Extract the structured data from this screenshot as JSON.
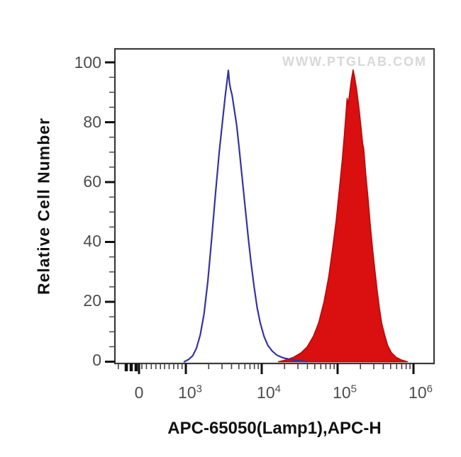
{
  "chart_data": {
    "type": "area",
    "description": "Flow cytometry overlay histogram: open blue control peak and red filled stained peak",
    "watermark": "WWW.PTGLAB.COM",
    "xlabel": "APC-65050(Lamp1),APC-H",
    "ylabel": "Relative Cell Number",
    "legend_position": "none",
    "grid": false,
    "x_axis": {
      "scale": "biexponential (linear near 0, log10 decades above)",
      "range_log10": [
        2.065,
        6.271
      ],
      "zero_tick": {
        "label": "0",
        "log10_pos": 2.383
      },
      "powers": [
        {
          "base": "10",
          "exp": "3",
          "log10_pos": 3
        },
        {
          "base": "10",
          "exp": "4",
          "log10_pos": 4
        },
        {
          "base": "10",
          "exp": "5",
          "log10_pos": 5
        },
        {
          "base": "10",
          "exp": "6",
          "log10_pos": 6
        }
      ],
      "zero_cluster_log10": [
        2.215,
        2.28,
        2.345
      ],
      "pre_decade_minors_log10": [
        2.42,
        2.48,
        2.545,
        2.605,
        2.665,
        2.72,
        2.78,
        2.84,
        2.895,
        2.95
      ],
      "edge_minor_log10": 2.11
    },
    "y_axis": {
      "tick_labels": [
        "0",
        "20",
        "40",
        "60",
        "80",
        "100"
      ],
      "tick_values": [
        0,
        20,
        40,
        60,
        80,
        100
      ],
      "minor_step": 5,
      "display_max": 104.5
    },
    "series": [
      {
        "name": "control (open blue histogram)",
        "style": "open",
        "stroke": "#3434a2",
        "stroke_width": 2.2,
        "fill": "none",
        "peak_x_approx": "3.6e3",
        "peak_height": 97,
        "points": [
          [
            2.98,
            0
          ],
          [
            3.04,
            0.8
          ],
          [
            3.09,
            2
          ],
          [
            3.14,
            4.5
          ],
          [
            3.19,
            9
          ],
          [
            3.24,
            16
          ],
          [
            3.29,
            27
          ],
          [
            3.34,
            41
          ],
          [
            3.39,
            56
          ],
          [
            3.44,
            70
          ],
          [
            3.49,
            82
          ],
          [
            3.52,
            89
          ],
          [
            3.545,
            94
          ],
          [
            3.56,
            97.3
          ],
          [
            3.575,
            93
          ],
          [
            3.59,
            91
          ],
          [
            3.61,
            89
          ],
          [
            3.64,
            84
          ],
          [
            3.67,
            79
          ],
          [
            3.7,
            72
          ],
          [
            3.74,
            62
          ],
          [
            3.78,
            52
          ],
          [
            3.82,
            42
          ],
          [
            3.86,
            33
          ],
          [
            3.9,
            25
          ],
          [
            3.94,
            18
          ],
          [
            3.98,
            13
          ],
          [
            4.03,
            8.5
          ],
          [
            4.08,
            5.5
          ],
          [
            4.14,
            3.5
          ],
          [
            4.2,
            2.2
          ],
          [
            4.28,
            1.3
          ],
          [
            4.38,
            0.7
          ],
          [
            4.5,
            0.3
          ],
          [
            4.6,
            0.05
          ]
        ]
      },
      {
        "name": "APC-65050 (Lamp1) stained (red filled histogram)",
        "style": "filled",
        "stroke": "#b50909",
        "stroke_width": 1.5,
        "fill": "#da0f0f",
        "peak_x_approx": "1.6e5",
        "peak_height": 97.5,
        "points": [
          [
            4.22,
            0
          ],
          [
            4.32,
            0.6
          ],
          [
            4.42,
            1.5
          ],
          [
            4.52,
            3
          ],
          [
            4.6,
            5
          ],
          [
            4.68,
            8.5
          ],
          [
            4.75,
            13
          ],
          [
            4.82,
            20
          ],
          [
            4.88,
            28
          ],
          [
            4.93,
            37
          ],
          [
            4.98,
            47
          ],
          [
            5.02,
            57
          ],
          [
            5.06,
            67
          ],
          [
            5.09,
            76
          ],
          [
            5.11,
            83
          ],
          [
            5.125,
            88
          ],
          [
            5.14,
            86
          ],
          [
            5.16,
            90
          ],
          [
            5.18,
            94
          ],
          [
            5.205,
            97.5
          ],
          [
            5.225,
            95
          ],
          [
            5.25,
            91
          ],
          [
            5.28,
            85
          ],
          [
            5.31,
            78
          ],
          [
            5.33,
            73
          ],
          [
            5.345,
            71
          ],
          [
            5.37,
            63
          ],
          [
            5.4,
            55
          ],
          [
            5.43,
            46
          ],
          [
            5.46,
            38
          ],
          [
            5.49,
            31
          ],
          [
            5.52,
            24
          ],
          [
            5.55,
            18
          ],
          [
            5.58,
            13
          ],
          [
            5.62,
            9
          ],
          [
            5.66,
            5.5
          ],
          [
            5.71,
            3
          ],
          [
            5.77,
            1.5
          ],
          [
            5.84,
            0.6
          ],
          [
            5.92,
            0
          ]
        ]
      }
    ],
    "colors": {
      "control_blue": "#3434a2",
      "stained_red": "#da0f0f",
      "frame": "#3a3a3a",
      "major_tick": "#111111",
      "minor_tick": "#444444",
      "tick_label_gray": "#4d4d4d",
      "watermark_gray": "#d8d8d8"
    }
  }
}
